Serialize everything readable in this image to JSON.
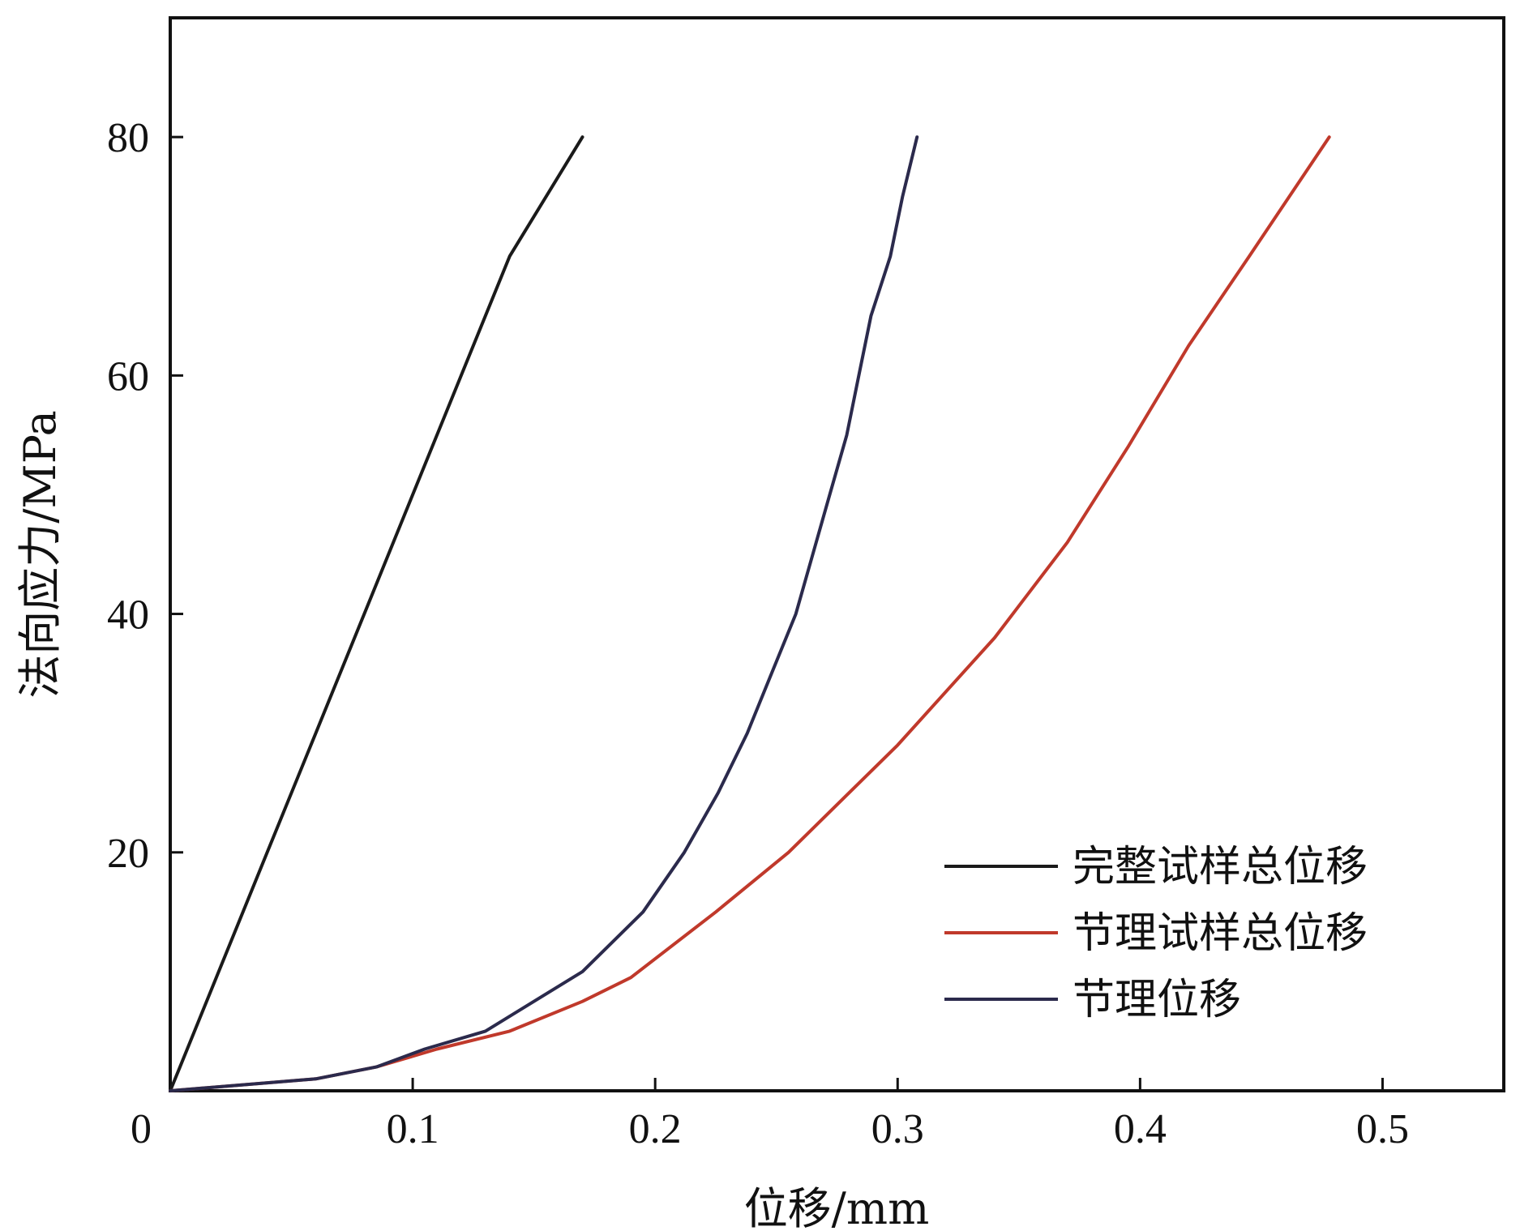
{
  "chart_data": {
    "type": "line",
    "xlabel": "位移/mm",
    "ylabel": "法向应力/MPa",
    "xlim": [
      0,
      0.55
    ],
    "ylim": [
      0,
      90
    ],
    "x_ticks": [
      {
        "value": 0,
        "label": "0"
      },
      {
        "value": 0.1,
        "label": "0.1"
      },
      {
        "value": 0.2,
        "label": "0.2"
      },
      {
        "value": 0.3,
        "label": "0.3"
      },
      {
        "value": 0.4,
        "label": "0.4"
      },
      {
        "value": 0.5,
        "label": "0.5"
      }
    ],
    "y_ticks": [
      {
        "value": 20,
        "label": "20"
      },
      {
        "value": 40,
        "label": "40"
      },
      {
        "value": 60,
        "label": "60"
      },
      {
        "value": 80,
        "label": "80"
      }
    ],
    "grid": false,
    "legend_position": "bottom-right",
    "series": [
      {
        "name": "完整试样总位移",
        "color": "#1a1a1a",
        "points": [
          [
            0,
            0
          ],
          [
            0.004,
            2
          ],
          [
            0.02,
            10
          ],
          [
            0.04,
            20
          ],
          [
            0.06,
            30
          ],
          [
            0.08,
            40
          ],
          [
            0.1,
            50
          ],
          [
            0.12,
            60
          ],
          [
            0.14,
            70
          ],
          [
            0.17,
            80
          ]
        ]
      },
      {
        "name": "节理试样总位移",
        "color": "#c0392b",
        "points": [
          [
            0,
            0
          ],
          [
            0.06,
            1
          ],
          [
            0.085,
            2
          ],
          [
            0.11,
            3.5
          ],
          [
            0.14,
            5
          ],
          [
            0.17,
            7.5
          ],
          [
            0.19,
            9.5
          ],
          [
            0.225,
            15
          ],
          [
            0.255,
            20
          ],
          [
            0.28,
            25
          ],
          [
            0.3,
            29
          ],
          [
            0.32,
            33.5
          ],
          [
            0.34,
            38
          ],
          [
            0.37,
            46
          ],
          [
            0.395,
            54
          ],
          [
            0.42,
            62.5
          ],
          [
            0.445,
            70
          ],
          [
            0.478,
            80
          ]
        ]
      },
      {
        "name": "节理位移",
        "color": "#2b2a4c",
        "points": [
          [
            0,
            0
          ],
          [
            0.06,
            1
          ],
          [
            0.085,
            2
          ],
          [
            0.105,
            3.5
          ],
          [
            0.13,
            5
          ],
          [
            0.15,
            7.5
          ],
          [
            0.17,
            10
          ],
          [
            0.195,
            15
          ],
          [
            0.212,
            20
          ],
          [
            0.226,
            25
          ],
          [
            0.238,
            30
          ],
          [
            0.248,
            35
          ],
          [
            0.258,
            40
          ],
          [
            0.265,
            45
          ],
          [
            0.272,
            50
          ],
          [
            0.279,
            55
          ],
          [
            0.284,
            60
          ],
          [
            0.289,
            65
          ],
          [
            0.297,
            70
          ],
          [
            0.302,
            75
          ],
          [
            0.308,
            80
          ]
        ]
      }
    ]
  }
}
